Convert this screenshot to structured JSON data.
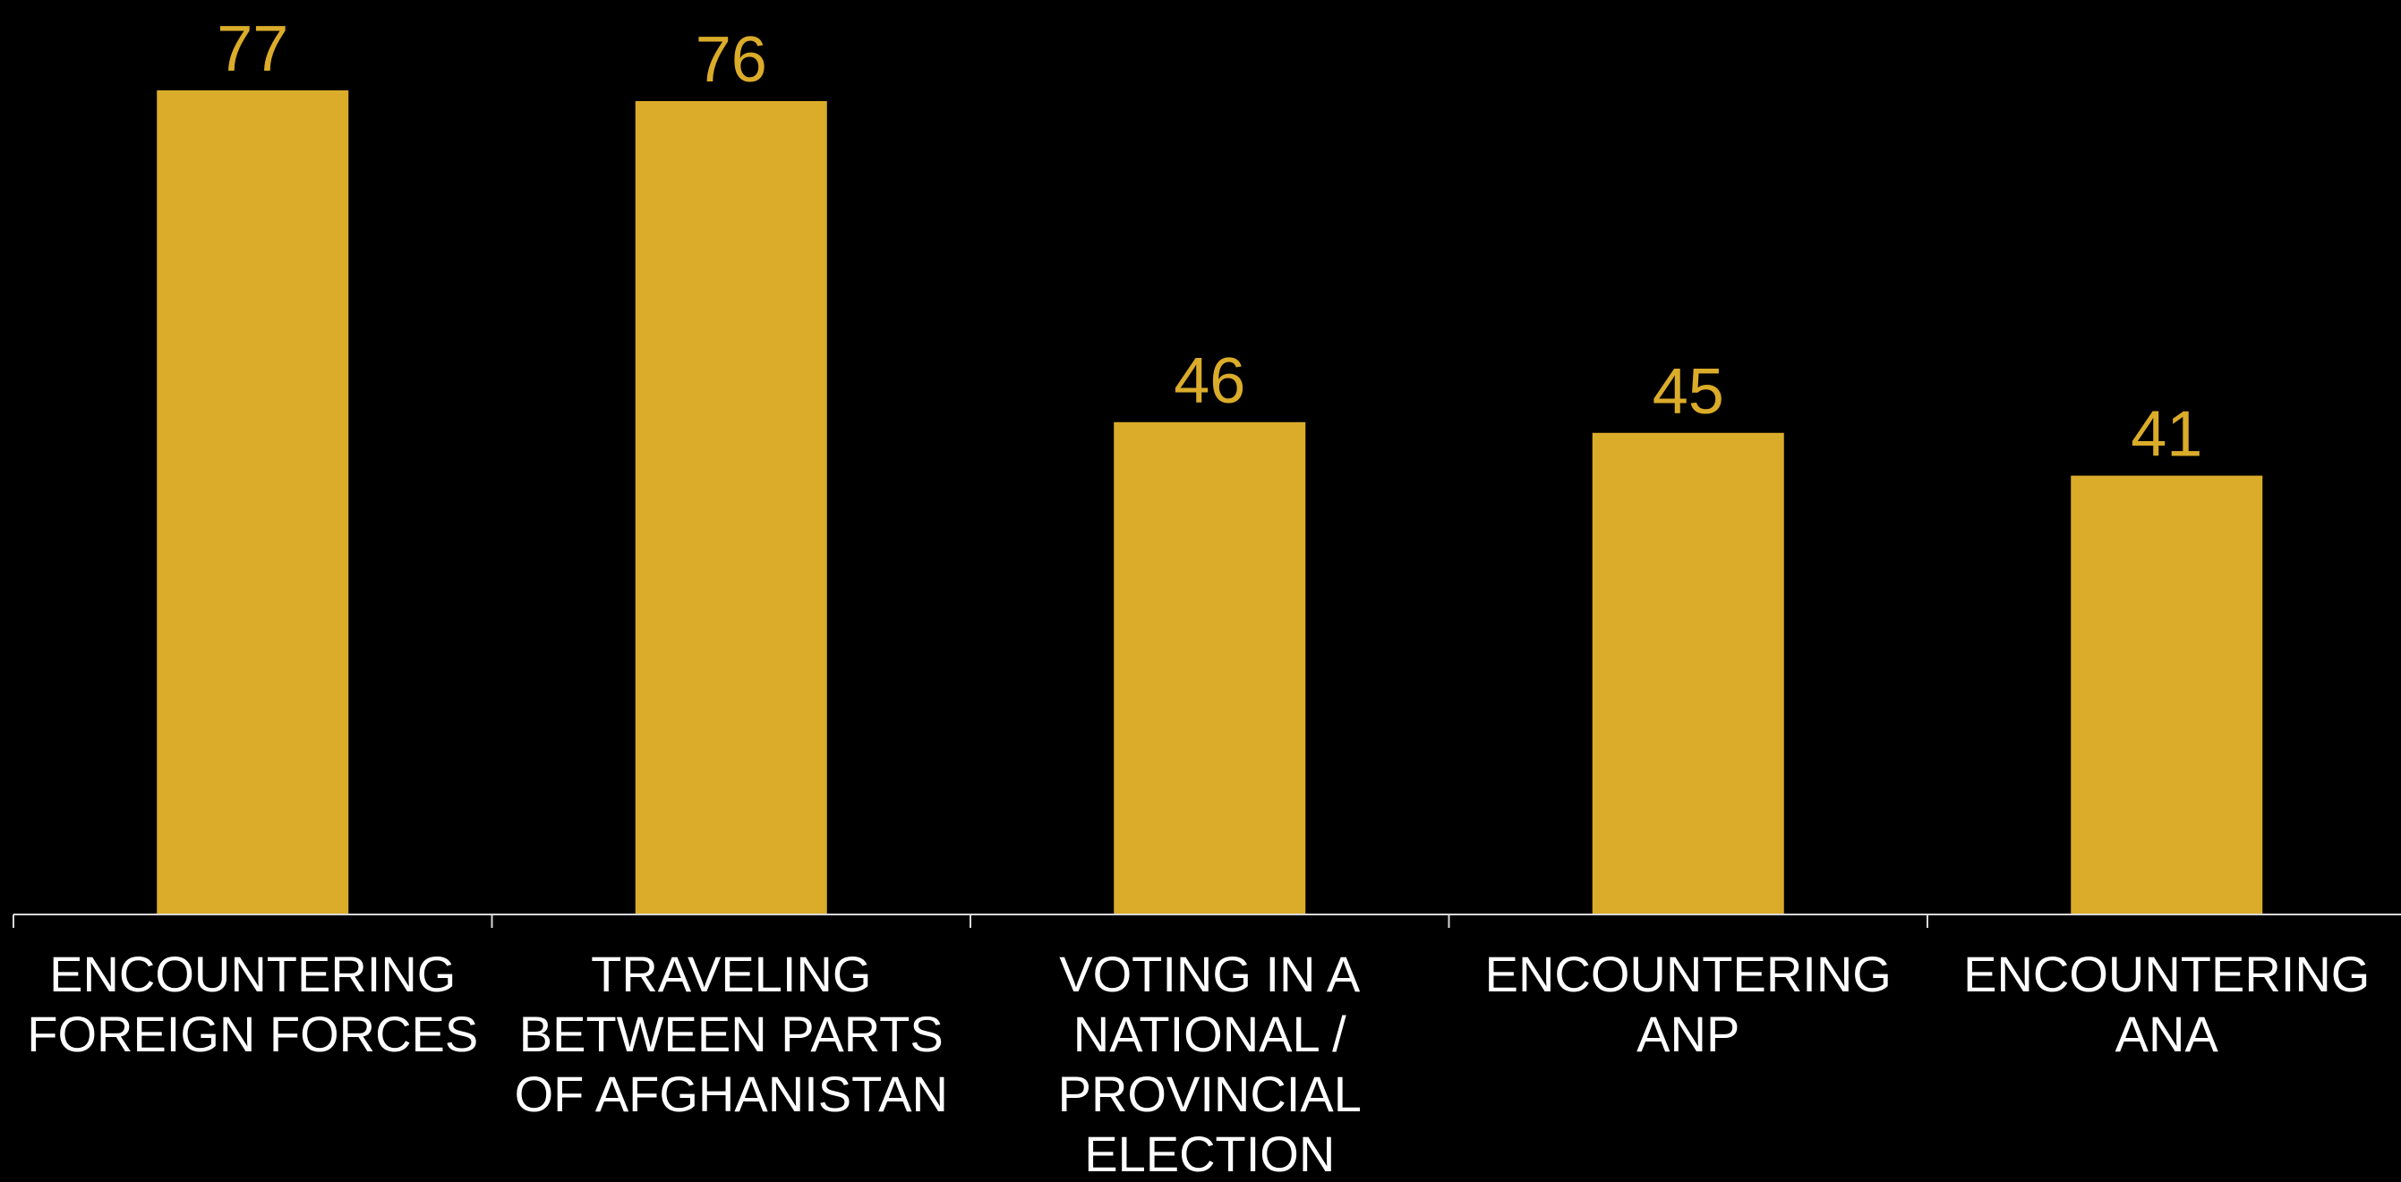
{
  "chart_data": {
    "type": "bar",
    "title": "",
    "xlabel": "",
    "ylabel": "",
    "ylim": [
      0,
      77
    ],
    "grid": false,
    "legend": "none",
    "categories": [
      [
        "ENCOUNTERING",
        "FOREIGN FORCES"
      ],
      [
        "TRAVELING",
        "BETWEEN PARTS",
        "OF AFGHANISTAN"
      ],
      [
        "VOTING IN A",
        "NATIONAL /",
        "PROVINCIAL",
        "ELECTION"
      ],
      [
        "ENCOUNTERING",
        "ANP"
      ],
      [
        "ENCOUNTERING",
        "ANA"
      ]
    ],
    "values": [
      77,
      76,
      46,
      45,
      41
    ],
    "data_labels": [
      "77",
      "76",
      "46",
      "45",
      "41"
    ],
    "colors": {
      "background": "#000000",
      "bar": "#DBAC2A",
      "value_label": "#DBAC2A",
      "category_label": "#FFFFFF",
      "axis": "#D9D9D9"
    }
  }
}
